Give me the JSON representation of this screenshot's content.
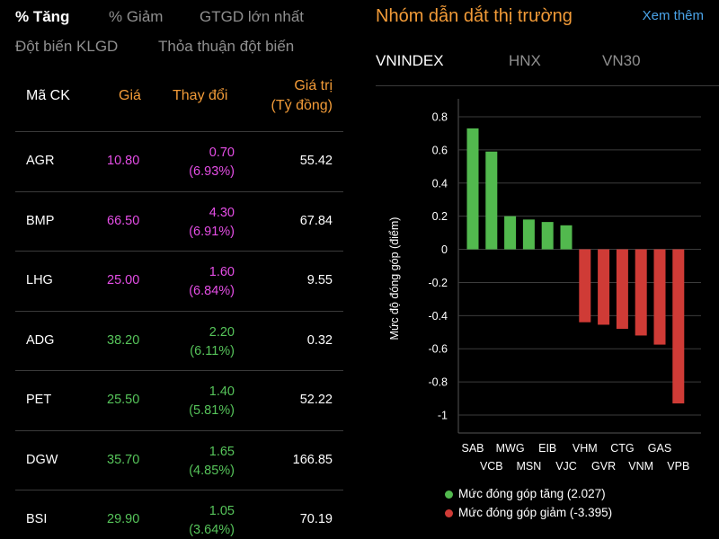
{
  "tabs": {
    "row1": [
      "% Tăng",
      "% Giảm",
      "GTGD lớn nhất"
    ],
    "row2": [
      "Đột biến KLGD",
      "Thỏa thuận đột biến"
    ]
  },
  "table": {
    "headers": {
      "code": "Mã CK",
      "price": "Giá",
      "change": "Thay đổi",
      "value_line1": "Giá trị",
      "value_line2": "(Tỷ đồng)"
    },
    "rows": [
      {
        "code": "AGR",
        "price": "10.80",
        "change": "0.70",
        "pct": "(6.93%)",
        "value": "55.42",
        "color": "#e54ee6"
      },
      {
        "code": "BMP",
        "price": "66.50",
        "change": "4.30",
        "pct": "(6.91%)",
        "value": "67.84",
        "color": "#e54ee6"
      },
      {
        "code": "LHG",
        "price": "25.00",
        "change": "1.60",
        "pct": "(6.84%)",
        "value": "9.55",
        "color": "#e54ee6"
      },
      {
        "code": "ADG",
        "price": "38.20",
        "change": "2.20",
        "pct": "(6.11%)",
        "value": "0.32",
        "color": "#56c45a"
      },
      {
        "code": "PET",
        "price": "25.50",
        "change": "1.40",
        "pct": "(5.81%)",
        "value": "52.22",
        "color": "#56c45a"
      },
      {
        "code": "DGW",
        "price": "35.70",
        "change": "1.65",
        "pct": "(4.85%)",
        "value": "166.85",
        "color": "#56c45a"
      },
      {
        "code": "BSI",
        "price": "29.90",
        "change": "1.05",
        "pct": "(3.64%)",
        "value": "70.19",
        "color": "#56c45a"
      }
    ]
  },
  "right_panel": {
    "title": "Nhóm dẫn dắt thị trường",
    "more_link": "Xem thêm",
    "index_tabs": [
      "VNINDEX",
      "HNX",
      "VN30"
    ]
  },
  "chart_data": {
    "type": "bar",
    "ylabel": "Mức độ đóng góp (điểm)",
    "ylim": [
      -1,
      0.8
    ],
    "yticks": [
      "0.8",
      "0.6",
      "0.4",
      "0.2",
      "0",
      "-0.2",
      "-0.4",
      "-0.6",
      "-0.8",
      "-1"
    ],
    "ytick_values": [
      0.8,
      0.6,
      0.4,
      0.2,
      0,
      -0.2,
      -0.4,
      -0.6,
      -0.8,
      -1
    ],
    "categories": [
      "SAB",
      "VCB",
      "MWG",
      "MSN",
      "EIB",
      "VJC",
      "VHM",
      "GVR",
      "CTG",
      "VNM",
      "GAS",
      "VPB"
    ],
    "values": [
      0.73,
      0.59,
      0.2,
      0.18,
      0.165,
      0.145,
      -0.44,
      -0.455,
      -0.48,
      -0.52,
      -0.575,
      -0.93
    ],
    "colors": {
      "positive": "#52b94e",
      "negative": "#cf3b36"
    },
    "legend": [
      {
        "label": "Mức đóng góp tăng (2.027)",
        "color": "#52b94e"
      },
      {
        "label": "Mức đóng góp giảm (-3.395)",
        "color": "#cf3b36"
      }
    ]
  }
}
